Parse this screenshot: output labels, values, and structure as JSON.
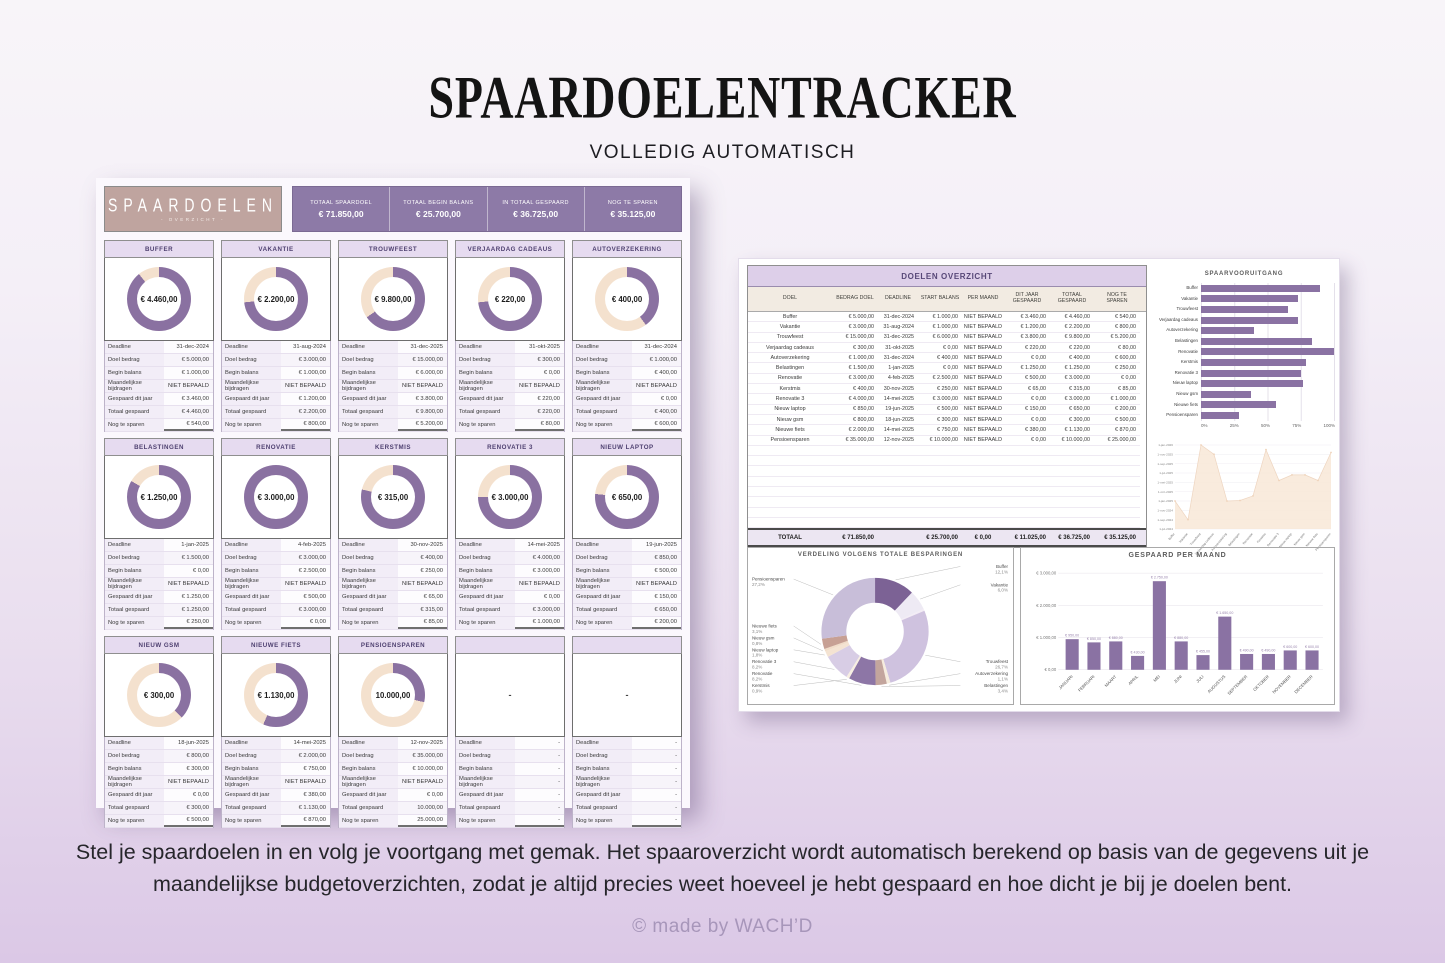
{
  "page": {
    "title": "SPAARDOELENTRACKER",
    "subtitle": "VOLLEDIG AUTOMATISCH",
    "description_line1": "Stel je spaardoelen in en volg je voortgang met gemak. Het spaaroverzicht wordt automatisch berekend op basis van de gegevens uit je",
    "description_line2": "maandelijkse budgetoverzichten, zodat je altijd precies weet hoeveel je hebt gespaard en hoe dicht je bij je doelen bent.",
    "credit": "© made by WACH’D"
  },
  "left_panel": {
    "logo": {
      "title": "SPAARDOELEN",
      "subtitle": "- OVERZICHT -"
    },
    "summary": [
      {
        "label": "TOTAAL SPAARDOEL",
        "value": "€ 71.850,00"
      },
      {
        "label": "TOTAAL BEGIN BALANS",
        "value": "€ 25.700,00"
      },
      {
        "label": "IN TOTAAL GESPAARD",
        "value": "€ 36.725,00"
      },
      {
        "label": "NOG TE SPAREN",
        "value": "€ 35.125,00"
      }
    ],
    "row_labels": [
      "Deadline",
      "Doel bedrag",
      "Begin balans",
      "Maandelijkse bijdragen",
      "Gespaard dit jaar",
      "Totaal gespaard",
      "Nog te sparen"
    ],
    "cards": [
      {
        "name": "BUFFER",
        "center": "€ 4.460,00",
        "pct": 89.2,
        "rows": [
          "31-dec-2024",
          "€ 5.000,00",
          "€ 1.000,00",
          "NIET BEPAALD",
          "€ 3.460,00",
          "€ 4.460,00",
          "€ 540,00"
        ]
      },
      {
        "name": "VAKANTIE",
        "center": "€ 2.200,00",
        "pct": 73.3,
        "rows": [
          "31-aug-2024",
          "€ 3.000,00",
          "€ 1.000,00",
          "NIET BEPAALD",
          "€ 1.200,00",
          "€ 2.200,00",
          "€ 800,00"
        ]
      },
      {
        "name": "TROUWFEEST",
        "center": "€ 9.800,00",
        "pct": 65.3,
        "rows": [
          "31-dec-2025",
          "€ 15.000,00",
          "€ 6.000,00",
          "NIET BEPAALD",
          "€ 3.800,00",
          "€ 9.800,00",
          "€ 5.200,00"
        ]
      },
      {
        "name": "VERJAARDAG CADEAUS",
        "center": "€ 220,00",
        "pct": 73.3,
        "rows": [
          "31-okt-2025",
          "€ 300,00",
          "€ 0,00",
          "NIET BEPAALD",
          "€ 220,00",
          "€ 220,00",
          "€ 80,00"
        ]
      },
      {
        "name": "AUTOVERZEKERING",
        "center": "€ 400,00",
        "pct": 40.0,
        "rows": [
          "31-dec-2024",
          "€ 1.000,00",
          "€ 400,00",
          "NIET BEPAALD",
          "€ 0,00",
          "€ 400,00",
          "€ 600,00"
        ]
      },
      {
        "name": "BELASTINGEN",
        "center": "€ 1.250,00",
        "pct": 83.3,
        "rows": [
          "1-jan-2025",
          "€ 1.500,00",
          "€ 0,00",
          "NIET BEPAALD",
          "€ 1.250,00",
          "€ 1.250,00",
          "€ 250,00"
        ]
      },
      {
        "name": "RENOVATIE",
        "center": "€ 3.000,00",
        "pct": 100,
        "rows": [
          "4-feb-2025",
          "€ 3.000,00",
          "€ 2.500,00",
          "NIET BEPAALD",
          "€ 500,00",
          "€ 3.000,00",
          "€ 0,00"
        ]
      },
      {
        "name": "KERSTMIS",
        "center": "€ 315,00",
        "pct": 78.8,
        "rows": [
          "30-nov-2025",
          "€ 400,00",
          "€ 250,00",
          "NIET BEPAALD",
          "€ 65,00",
          "€ 315,00",
          "€ 85,00"
        ]
      },
      {
        "name": "RENOVATIE 3",
        "center": "€ 3.000,00",
        "pct": 75.0,
        "rows": [
          "14-mei-2025",
          "€ 4.000,00",
          "€ 3.000,00",
          "NIET BEPAALD",
          "€ 0,00",
          "€ 3.000,00",
          "€ 1.000,00"
        ]
      },
      {
        "name": "NIEUW LAPTOP",
        "center": "€ 650,00",
        "pct": 76.5,
        "rows": [
          "19-jun-2025",
          "€ 850,00",
          "€ 500,00",
          "NIET BEPAALD",
          "€ 150,00",
          "€ 650,00",
          "€ 200,00"
        ]
      },
      {
        "name": "NIEUW GSM",
        "center": "€ 300,00",
        "pct": 37.5,
        "rows": [
          "18-jun-2025",
          "€ 800,00",
          "€ 300,00",
          "NIET BEPAALD",
          "€ 0,00",
          "€ 300,00",
          "€ 500,00"
        ]
      },
      {
        "name": "NIEUWE FIETS",
        "center": "€ 1.130,00",
        "pct": 56.5,
        "rows": [
          "14-mei-2025",
          "€ 2.000,00",
          "€ 750,00",
          "NIET BEPAALD",
          "€ 380,00",
          "€ 1.130,00",
          "€ 870,00"
        ]
      },
      {
        "name": "PENSIOENSPAREN",
        "center": "10.000,00",
        "pct": 28.6,
        "rows": [
          "12-nov-2025",
          "€ 35.000,00",
          "€ 10.000,00",
          "NIET BEPAALD",
          "€ 0,00",
          "10.000,00",
          "25.000,00"
        ]
      },
      {
        "name": "",
        "center": "-",
        "pct": null,
        "rows": [
          "-",
          "-",
          "-",
          "-",
          "-",
          "-",
          "-"
        ]
      },
      {
        "name": "",
        "center": "-",
        "pct": null,
        "rows": [
          "-",
          "-",
          "-",
          "-",
          "-",
          "-",
          "-"
        ]
      }
    ],
    "donut_colors": {
      "progress": "#8a71a1",
      "remaining": "#f4e1ce"
    }
  },
  "right_panel": {
    "table": {
      "title": "DOELEN OVERZICHT",
      "columns": [
        "DOEL",
        "BEDRAG DOEL",
        "DEADLINE",
        "START BALANS",
        "PER MAAND",
        "DIT JAAR GESPAARD",
        "TOTAAL GESPAARD",
        "NOG TE SPAREN"
      ],
      "rows": [
        [
          "Buffer",
          "€ 5.000,00",
          "31-dec-2024",
          "€ 1.000,00",
          "NIET BEPAALD",
          "€ 3.460,00",
          "€ 4.460,00",
          "€ 540,00"
        ],
        [
          "Vakantie",
          "€ 3.000,00",
          "31-aug-2024",
          "€ 1.000,00",
          "NIET BEPAALD",
          "€ 1.200,00",
          "€ 2.200,00",
          "€ 800,00"
        ],
        [
          "Trouwfeest",
          "€ 15.000,00",
          "31-dec-2025",
          "€ 6.000,00",
          "NIET BEPAALD",
          "€ 3.800,00",
          "€ 9.800,00",
          "€ 5.200,00"
        ],
        [
          "Verjaardag cadeaus",
          "€ 300,00",
          "31-okt-2025",
          "€ 0,00",
          "NIET BEPAALD",
          "€ 220,00",
          "€ 220,00",
          "€ 80,00"
        ],
        [
          "Autoverzekering",
          "€ 1.000,00",
          "31-dec-2024",
          "€ 400,00",
          "NIET BEPAALD",
          "€ 0,00",
          "€ 400,00",
          "€ 600,00"
        ],
        [
          "Belastingen",
          "€ 1.500,00",
          "1-jan-2025",
          "€ 0,00",
          "NIET BEPAALD",
          "€ 1.250,00",
          "€ 1.250,00",
          "€ 250,00"
        ],
        [
          "Renovatie",
          "€ 3.000,00",
          "4-feb-2025",
          "€ 2.500,00",
          "NIET BEPAALD",
          "€ 500,00",
          "€ 3.000,00",
          "€ 0,00"
        ],
        [
          "Kerstmis",
          "€ 400,00",
          "30-nov-2025",
          "€ 250,00",
          "NIET BEPAALD",
          "€ 65,00",
          "€ 315,00",
          "€ 85,00"
        ],
        [
          "Renovatie 3",
          "€ 4.000,00",
          "14-mei-2025",
          "€ 3.000,00",
          "NIET BEPAALD",
          "€ 0,00",
          "€ 3.000,00",
          "€ 1.000,00"
        ],
        [
          "Nieuw laptop",
          "€ 850,00",
          "19-jun-2025",
          "€ 500,00",
          "NIET BEPAALD",
          "€ 150,00",
          "€ 650,00",
          "€ 200,00"
        ],
        [
          "Nieuw gsm",
          "€ 800,00",
          "18-jun-2025",
          "€ 300,00",
          "NIET BEPAALD",
          "€ 0,00",
          "€ 300,00",
          "€ 500,00"
        ],
        [
          "Nieuwe fiets",
          "€ 2.000,00",
          "14-mei-2025",
          "€ 750,00",
          "NIET BEPAALD",
          "€ 380,00",
          "€ 1.130,00",
          "€ 870,00"
        ],
        [
          "Pensioensparen",
          "€ 35.000,00",
          "12-nov-2025",
          "€ 10.000,00",
          "NIET BEPAALD",
          "€ 0,00",
          "€ 10.000,00",
          "€ 25.000,00"
        ]
      ],
      "empty_row_count": 8,
      "total_row": [
        "TOTAAL",
        "€ 71.850,00",
        "",
        "€ 25.700,00",
        "€ 0,00",
        "€ 11.025,00",
        "€ 36.725,00",
        "€ 35.125,00"
      ]
    }
  },
  "chart_data": [
    {
      "type": "bar",
      "orientation": "horizontal",
      "title": "SPAARVOORUITGANG",
      "categories": [
        "Buffer",
        "Vakantie",
        "Trouwfeest",
        "Verjaardag cadeaus",
        "Autoverzekering",
        "Belastingen",
        "Renovatie",
        "Kerstmis",
        "Renovatie 3",
        "Nieuw laptop",
        "Nieuw gsm",
        "Nieuwe fiets",
        "Pensioensparen"
      ],
      "values": [
        89.2,
        73.3,
        65.3,
        73.3,
        40,
        83.3,
        100,
        78.8,
        75,
        76.5,
        37.5,
        56.5,
        28.6
      ],
      "xlim": [
        0,
        100
      ],
      "xticks": [
        "0%",
        "25%",
        "50%",
        "75%",
        "100%"
      ],
      "bar_color": "#8a72a3",
      "grid": true
    },
    {
      "type": "area",
      "title": "",
      "ylabel": "deadline",
      "categories": [
        "Buffer",
        "Vakantie",
        "Trouwfeest",
        "Verjaardag cadeaus",
        "Autoverzekering",
        "Belastingen",
        "Renovatie",
        "Kerstmis",
        "Renovatie 3",
        "Nieuw laptop",
        "Nieuw gsm",
        "Nieuwe fiets",
        "Pensioensparen"
      ],
      "deadlines": [
        "31-dec-2024",
        "31-aug-2024",
        "31-dec-2025",
        "31-okt-2025",
        "31-dec-2024",
        "1-jan-2025",
        "4-feb-2025",
        "30-nov-2025",
        "14-mei-2025",
        "19-jun-2025",
        "18-jun-2025",
        "14-mei-2025",
        "12-nov-2025"
      ],
      "t_months_from_jul2024": [
        6,
        2,
        18,
        16,
        6,
        6.1,
        7.1,
        17,
        10.4,
        11.6,
        11.6,
        10.4,
        16.4
      ],
      "t_domain": [
        0,
        18
      ],
      "yticks": [
        {
          "label": "1-jul-2024",
          "t": 0
        },
        {
          "label": "1-sep-2024",
          "t": 2
        },
        {
          "label": "1-nov-2024",
          "t": 4
        },
        {
          "label": "1-jan-2025",
          "t": 6
        },
        {
          "label": "1-mrt-2025",
          "t": 8
        },
        {
          "label": "1-mei-2025",
          "t": 10
        },
        {
          "label": "1-jul-2025",
          "t": 12
        },
        {
          "label": "1-sep-2025",
          "t": 14
        },
        {
          "label": "1-nov-2025",
          "t": 16
        },
        {
          "label": "1-jan-2026",
          "t": 18
        }
      ],
      "fill_color": "#f8e7d7",
      "line_color": "#eed5c0",
      "grid": true
    },
    {
      "type": "pie",
      "title": "VERDELING VOLGENS TOTALE BESPARINGEN",
      "slices": [
        {
          "name": "Buffer",
          "pct": 12.1,
          "label": "12,1%",
          "color": "#7c6295",
          "labeled": true
        },
        {
          "name": "Vakantie",
          "pct": 6.0,
          "label": "6,0%",
          "color": "#eeeaf4",
          "labeled": true
        },
        {
          "name": "Verjaardag cadeaus",
          "pct": 0.6,
          "label": "0,6%",
          "color": "#f3ecf5",
          "labeled": false
        },
        {
          "name": "Trouwfeest",
          "pct": 26.7,
          "label": "26,7%",
          "color": "#cfc2df",
          "labeled": true
        },
        {
          "name": "Autoverzekering",
          "pct": 1.1,
          "label": "1,1%",
          "color": "#f6ecdd",
          "labeled": true
        },
        {
          "name": "Belastingen",
          "pct": 3.4,
          "label": "3,4%",
          "color": "#c3a59d",
          "labeled": true
        },
        {
          "name": "Renovatie",
          "pct": 8.2,
          "label": "8,2%",
          "color": "#8d76a6",
          "labeled": true
        },
        {
          "name": "Kerstmis",
          "pct": 0.9,
          "label": "0,9%",
          "color": "#f7eee2",
          "labeled": true
        },
        {
          "name": "Renovatie 3",
          "pct": 8.2,
          "label": "8,2%",
          "color": "#d8cde5",
          "labeled": true
        },
        {
          "name": "Nieuw laptop",
          "pct": 1.8,
          "label": "1,8%",
          "color": "#f4e3d2",
          "labeled": true
        },
        {
          "name": "Nieuw gsm",
          "pct": 0.8,
          "label": "0,8%",
          "color": "#f1dcc8",
          "labeled": true
        },
        {
          "name": "Nieuwe fiets",
          "pct": 3.1,
          "label": "3,1%",
          "color": "#c7a094",
          "labeled": true
        },
        {
          "name": "Pensioensparen",
          "pct": 27.2,
          "label": "27,2%",
          "color": "#c8bed9",
          "labeled": true
        }
      ],
      "legend_position": "callout-labels"
    },
    {
      "type": "bar",
      "orientation": "vertical",
      "title": "GESPAARD PER MAAND",
      "categories": [
        "JANUARI",
        "FEBRUARI",
        "MAART",
        "APRIL",
        "MEI",
        "JUNI",
        "JULI",
        "AUGUSTUS",
        "SEPTEMBER",
        "OKTOBER",
        "NOVEMBER",
        "DECEMBER"
      ],
      "values": [
        950,
        850,
        880,
        430,
        2750,
        880,
        455,
        1650,
        490,
        490,
        600,
        600
      ],
      "value_labels": [
        "€ 950,00",
        "€ 850,00",
        "€ 880,00",
        "€ 430,00",
        "€ 2.750,00",
        "€ 880,00",
        "€ 455,00",
        "€ 1.650,00",
        "€ 490,00",
        "€ 490,00",
        "€ 600,00",
        "€ 600,00"
      ],
      "ylim": [
        0,
        3000
      ],
      "yticks": [
        {
          "label": "€ 0,00",
          "v": 0
        },
        {
          "label": "€ 1.000,00",
          "v": 1000
        },
        {
          "label": "€ 2.000,00",
          "v": 2000
        },
        {
          "label": "€ 3.000,00",
          "v": 3000
        }
      ],
      "bar_color": "#8a72a3",
      "grid": true
    }
  ]
}
